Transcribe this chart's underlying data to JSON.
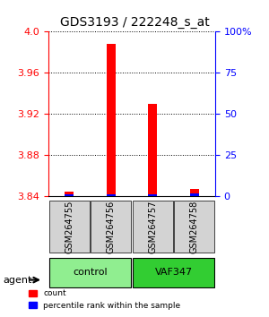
{
  "title": "GDS3193 / 222248_s_at",
  "samples": [
    "GSM264755",
    "GSM264756",
    "GSM264757",
    "GSM264758"
  ],
  "groups": [
    "control",
    "control",
    "VAF347",
    "VAF347"
  ],
  "group_colors": {
    "control": "#90EE90",
    "VAF347": "#32CD32"
  },
  "red_values": [
    3.845,
    3.988,
    3.93,
    3.847
  ],
  "blue_values": [
    3.841,
    3.841,
    3.841,
    3.842
  ],
  "ylim": [
    3.84,
    4.0
  ],
  "yticks": [
    3.84,
    3.88,
    3.92,
    3.96,
    4.0
  ],
  "right_yticks": [
    0,
    25,
    50,
    75,
    100
  ],
  "right_ytick_labels": [
    "0",
    "25",
    "50",
    "75",
    "100%"
  ],
  "bar_width": 0.35,
  "background_color": "#ffffff",
  "left_axis_color": "red",
  "right_axis_color": "blue",
  "grid_color": "#000000",
  "agent_label": "agent"
}
